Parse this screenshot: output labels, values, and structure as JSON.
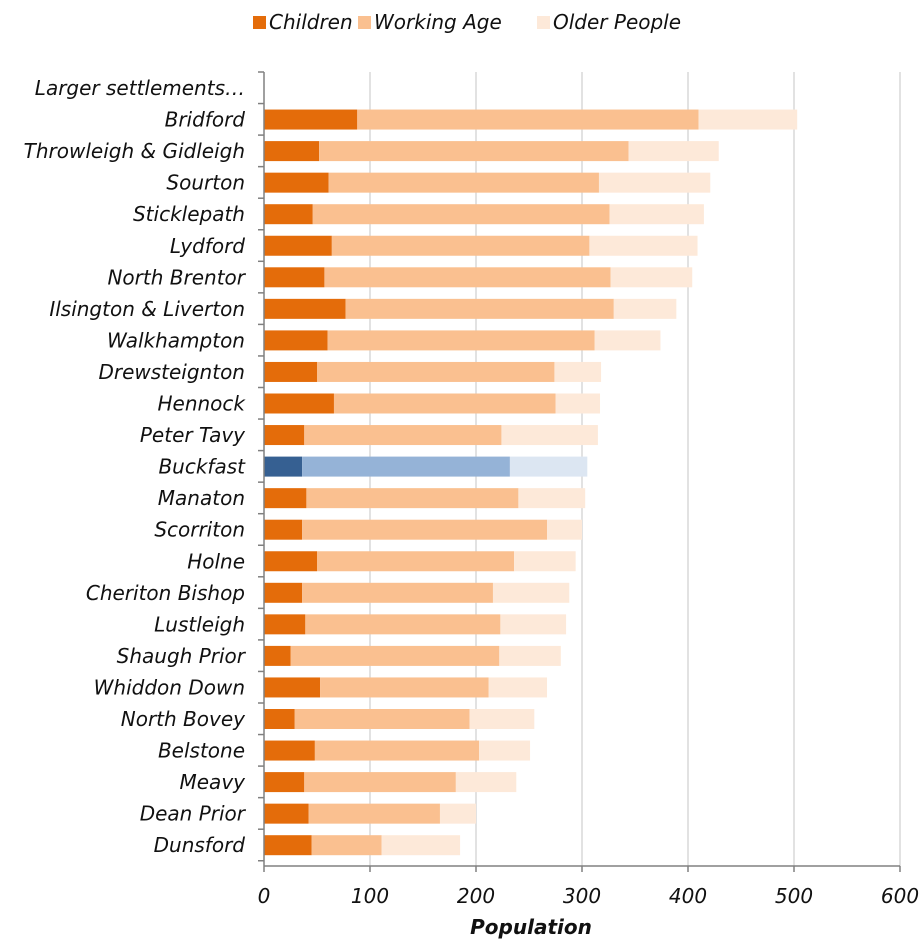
{
  "chart_data": {
    "type": "bar",
    "orientation": "horizontal",
    "stacked": true,
    "categories": [
      "Larger settlements…",
      "Bridford",
      "Throwleigh & Gidleigh",
      "Sourton",
      "Sticklepath",
      "Lydford",
      "North Brentor",
      "Ilsington & Liverton",
      "Walkhampton",
      "Drewsteignton",
      "Hennock",
      "Peter Tavy",
      "Buckfast",
      "Manaton",
      "Scorriton",
      "Holne",
      "Cheriton Bishop",
      "Lustleigh",
      "Shaugh Prior",
      "Whiddon Down",
      "North Bovey",
      "Belstone",
      "Meavy",
      "Dean Prior",
      "Dunsford"
    ],
    "series": [
      {
        "name": "Children",
        "color": "#e46c0a",
        "highlight_color": "#366092",
        "values": [
          null,
          88,
          52,
          61,
          46,
          64,
          57,
          77,
          60,
          50,
          66,
          38,
          36,
          40,
          36,
          50,
          36,
          39,
          25,
          53,
          29,
          48,
          38,
          42,
          45
        ]
      },
      {
        "name": "Working Age",
        "color": "#fac090",
        "highlight_color": "#95b3d7",
        "values": [
          null,
          322,
          292,
          255,
          280,
          243,
          270,
          253,
          252,
          224,
          209,
          186,
          196,
          200,
          231,
          186,
          180,
          184,
          197,
          159,
          165,
          155,
          143,
          124,
          66
        ]
      },
      {
        "name": "Older People",
        "color": "#fde9d9",
        "highlight_color": "#dce6f2",
        "values": [
          null,
          93,
          85,
          105,
          89,
          102,
          77,
          59,
          62,
          44,
          42,
          91,
          73,
          63,
          33,
          58,
          72,
          62,
          58,
          55,
          61,
          48,
          57,
          34,
          74
        ]
      }
    ],
    "highlight_category": "Buckfast",
    "xlabel": "Population",
    "ylabel": "",
    "xlim": [
      0,
      600
    ],
    "xticks": [
      "0",
      "100",
      "200",
      "300",
      "400",
      "500",
      "600"
    ],
    "grid": true,
    "legend_position": "top"
  }
}
